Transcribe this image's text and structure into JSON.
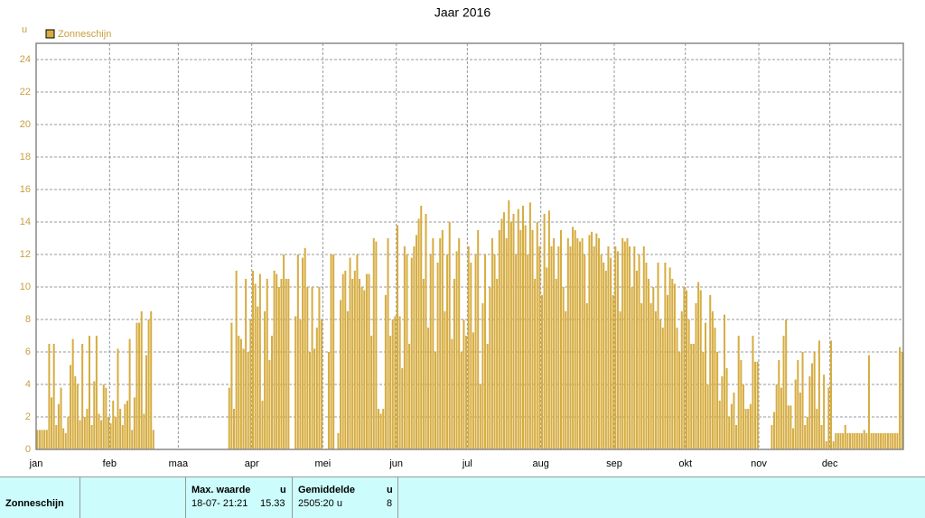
{
  "chart_data": {
    "type": "bar",
    "title": "Jaar 2016",
    "ylabel": "u",
    "series": [
      {
        "name": "Zonneschijn",
        "color": "#d6ad42",
        "values": [
          1.2,
          1.2,
          1.2,
          1.2,
          1.2,
          6.5,
          3.2,
          6.5,
          1.5,
          2.8,
          3.8,
          1.3,
          1.0,
          2.0,
          5.2,
          6.8,
          4.5,
          4.0,
          1.8,
          6.5,
          2.0,
          2.5,
          7.0,
          1.5,
          4.2,
          7.0,
          2.2,
          1.8,
          4.0,
          3.8,
          2.0,
          1.6,
          3.0,
          2.0,
          6.2,
          2.5,
          1.5,
          2.8,
          3.0,
          6.8,
          1.2,
          3.2,
          7.8,
          7.8,
          8.5,
          2.2,
          5.8,
          8.0,
          8.5,
          1.2,
          null,
          null,
          null,
          null,
          null,
          null,
          null,
          null,
          null,
          null,
          null,
          null,
          null,
          null,
          null,
          null,
          null,
          null,
          null,
          null,
          null,
          null,
          null,
          null,
          null,
          null,
          null,
          null,
          null,
          null,
          null,
          3.8,
          7.8,
          2.5,
          11.0,
          7.0,
          6.8,
          6.2,
          10.5,
          6.0,
          8.0,
          11.0,
          10.2,
          8.8,
          10.8,
          3.0,
          8.5,
          10.5,
          5.5,
          7.0,
          11.0,
          10.8,
          10.0,
          10.5,
          12.0,
          10.5,
          10.5,
          0,
          0,
          8.2,
          12.0,
          8.0,
          11.8,
          12.4,
          10.0,
          6.0,
          10.0,
          6.2,
          7.5,
          10.0,
          8.0,
          0,
          0,
          6.0,
          12.0,
          12.0,
          0,
          1.0,
          9.2,
          10.8,
          11.0,
          8.5,
          11.8,
          10.5,
          11.0,
          12.0,
          10.5,
          10.0,
          9.8,
          10.8,
          10.8,
          7.0,
          13.0,
          12.8,
          2.5,
          2.2,
          2.5,
          9.5,
          13.0,
          7.0,
          8.0,
          8.2,
          13.8,
          8.2,
          5.0,
          12.5,
          12.0,
          6.5,
          11.8,
          12.5,
          13.2,
          14.2,
          15.0,
          10.5,
          14.5,
          7.5,
          12.0,
          13.0,
          6.0,
          11.5,
          13.0,
          13.5,
          8.5,
          12.0,
          14.0,
          6.8,
          10.5,
          12.2,
          13.0,
          6.0,
          8.0,
          7.0,
          12.5,
          11.5,
          7.2,
          12.0,
          13.5,
          4.0,
          9.0,
          12.0,
          6.5,
          10.0,
          13.0,
          12.0,
          10.5,
          13.5,
          14.2,
          14.6,
          13.0,
          15.33,
          14.0,
          14.5,
          12.0,
          14.8,
          13.5,
          15.0,
          13.8,
          12.0,
          15.2,
          13.5,
          10.5,
          14.0,
          12.5,
          9.5,
          14.5,
          11.2,
          14.7,
          12.5,
          13.0,
          10.5,
          12.5,
          13.5,
          10.0,
          8.5,
          13.0,
          12.5,
          13.7,
          13.5,
          13.0,
          12.8,
          13.0,
          12.0,
          9.0,
          13.2,
          13.4,
          12.5,
          13.3,
          13.0,
          12.0,
          11.5,
          11.0,
          12.5,
          11.8,
          9.5,
          12.5,
          12.2,
          8.5,
          13.0,
          12.8,
          13.0,
          12.5,
          10.0,
          12.5,
          11.0,
          12.0,
          9.0,
          12.5,
          11.5,
          10.5,
          9.0,
          10.0,
          8.5,
          11.5,
          8.0,
          7.5,
          11.5,
          9.5,
          11.2,
          10.5,
          10.2,
          7.5,
          6.0,
          8.5,
          10.0,
          9.8,
          8.0,
          6.5,
          6.5,
          9.0,
          10.3,
          9.8,
          6.0,
          7.8,
          4.0,
          9.5,
          8.5,
          7.5,
          6.0,
          3.0,
          4.5,
          8.3,
          5.0,
          2.0,
          2.8,
          3.5,
          1.5,
          7.0,
          5.5,
          4.0,
          2.5,
          2.5,
          2.8,
          7.0,
          5.4,
          5.4,
          null,
          null,
          null,
          null,
          null,
          1.5,
          2.3,
          4.0,
          5.5,
          3.8,
          7.0,
          8.0,
          2.7,
          2.7,
          1.3,
          4.3,
          5.5,
          3.5,
          6.0,
          1.5,
          2.0,
          4.5,
          5.3,
          6.0,
          2.5,
          6.7,
          1.5,
          4.6,
          0.5,
          3.8,
          6.7,
          0.5,
          1.0,
          1.0,
          1.0,
          1.0,
          1.5,
          1.0,
          1.0,
          1.0,
          1.0,
          1.0,
          1.0,
          1.0,
          1.2,
          1.0,
          5.8,
          1.0,
          1.0,
          1.0,
          1.0,
          1.0,
          1.0,
          1.0,
          1.0,
          1.0,
          1.0,
          1.0,
          1.0,
          6.3,
          6.0
        ]
      }
    ],
    "categories": [
      "jan",
      null,
      null,
      null,
      null,
      null,
      null,
      null,
      null,
      null,
      null,
      null,
      null,
      null,
      null,
      null,
      null,
      null,
      null,
      null,
      null,
      null,
      null,
      null,
      null,
      null,
      null,
      null,
      null,
      null,
      null,
      "feb",
      null,
      null,
      null,
      null,
      null,
      null,
      null,
      null,
      null,
      null,
      null,
      null,
      null,
      null,
      null,
      null,
      null,
      null,
      null,
      null,
      null,
      null,
      null,
      null,
      null,
      null,
      null,
      null,
      "maa",
      null,
      null,
      null,
      null,
      null,
      null,
      null,
      null,
      null,
      null,
      null,
      null,
      null,
      null,
      null,
      null,
      null,
      null,
      null,
      null,
      null,
      null,
      null,
      null,
      null,
      null,
      null,
      null,
      null,
      null,
      "apr",
      null,
      null,
      null,
      null,
      null,
      null,
      null,
      null,
      null,
      null,
      null,
      null,
      null,
      null,
      null,
      null,
      null,
      null,
      null,
      null,
      null,
      null,
      null,
      null,
      null,
      null,
      null,
      null,
      null,
      "mei",
      null,
      null,
      null,
      null,
      null,
      null,
      null,
      null,
      null,
      null,
      null,
      null,
      null,
      null,
      null,
      null,
      null,
      null,
      null,
      null,
      null,
      null,
      null,
      null,
      null,
      null,
      null,
      null,
      null,
      null,
      "jun",
      null,
      null,
      null,
      null,
      null,
      null,
      null,
      null,
      null,
      null,
      null,
      null,
      null,
      null,
      null,
      null,
      null,
      null,
      null,
      null,
      null,
      null,
      null,
      null,
      null,
      null,
      null,
      null,
      null,
      "jul",
      null,
      null,
      null,
      null,
      null,
      null,
      null,
      null,
      null,
      null,
      null,
      null,
      null,
      null,
      null,
      null,
      null,
      null,
      null,
      null,
      null,
      null,
      null,
      null,
      null,
      null,
      null,
      null,
      null,
      null,
      "aug",
      null,
      null,
      null,
      null,
      null,
      null,
      null,
      null,
      null,
      null,
      null,
      null,
      null,
      null,
      null,
      null,
      null,
      null,
      null,
      null,
      null,
      null,
      null,
      null,
      null,
      null,
      null,
      null,
      null,
      null,
      "sep",
      null,
      null,
      null,
      null,
      null,
      null,
      null,
      null,
      null,
      null,
      null,
      null,
      null,
      null,
      null,
      null,
      null,
      null,
      null,
      null,
      null,
      null,
      null,
      null,
      null,
      null,
      null,
      null,
      null,
      "okt",
      null,
      null,
      null,
      null,
      null,
      null,
      null,
      null,
      null,
      null,
      null,
      null,
      null,
      null,
      null,
      null,
      null,
      null,
      null,
      null,
      null,
      null,
      null,
      null,
      null,
      null,
      null,
      null,
      null,
      null,
      "nov",
      null,
      null,
      null,
      null,
      null,
      null,
      null,
      null,
      null,
      null,
      null,
      null,
      null,
      null,
      null,
      null,
      null,
      null,
      null,
      null,
      null,
      null,
      null,
      null,
      null,
      null,
      null,
      null,
      null,
      "dec",
      null,
      null,
      null,
      null,
      null,
      null,
      null,
      null,
      null,
      null,
      null,
      null,
      null,
      null,
      null,
      null,
      null,
      null,
      null,
      null,
      null,
      null,
      null,
      null,
      null,
      null,
      null,
      null,
      null,
      null
    ],
    "ylim": [
      0,
      25
    ],
    "yticks": [
      0,
      2,
      4,
      6,
      8,
      10,
      12,
      14,
      16,
      18,
      20,
      22,
      24
    ],
    "grid": true,
    "legend": "top-left"
  },
  "table": {
    "row_label": "Zonneschijn",
    "columns": [
      {
        "header": "Max. waarde",
        "unit": "u",
        "cells": [
          "18-07- 21:21",
          "15.33"
        ]
      },
      {
        "header": "Gemiddelde",
        "unit": "u",
        "cells": [
          "2505:20 u",
          "8"
        ]
      }
    ]
  }
}
